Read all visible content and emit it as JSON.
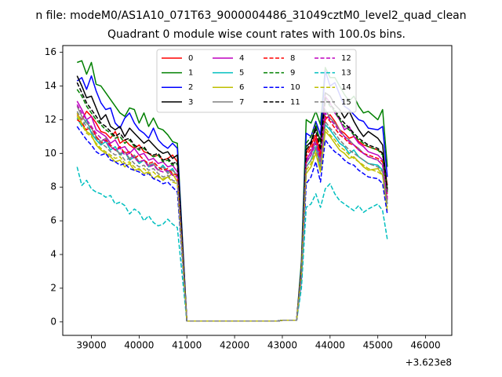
{
  "figure": {
    "suptitle": "n file: modeM0/AS1A10_071T63_9000004486_31049cztM0_level2_quad_clean"
  },
  "chart_data": {
    "type": "line",
    "title": "Quadrant 0 module wise count rates with 100.0s bins.",
    "xlabel": "",
    "ylabel": "",
    "x_offset_label": "+3.623e8",
    "xlim": [
      38400,
      46550
    ],
    "ylim": [
      -0.8,
      16.4
    ],
    "xticks": [
      39000,
      40000,
      41000,
      42000,
      43000,
      44000,
      45000,
      46000
    ],
    "yticks": [
      0,
      2,
      4,
      6,
      8,
      10,
      12,
      14,
      16
    ],
    "grid": false,
    "legend": {
      "placement": "top-center",
      "columns": 4
    },
    "x_segments": [
      {
        "start": 38700,
        "step": 100,
        "count": 22
      },
      {
        "start": 41000,
        "step": 100,
        "count": 22
      },
      {
        "start": 43300,
        "step": 100,
        "count": 16
      },
      {
        "start": 45000,
        "step": 100,
        "count": 13
      }
    ],
    "zero_segment": {
      "start": 41100,
      "end": 43000,
      "step": 100,
      "value": 0.05
    },
    "series": [
      {
        "name": "0",
        "color": "#ff0000",
        "dash": "solid",
        "s1": [
          12.3,
          12.0,
          12.5,
          12.2,
          11.8,
          11.3,
          11.2,
          10.9,
          11.3,
          10.6,
          10.8,
          10.5,
          10.3,
          10.5,
          10.1,
          10.0,
          9.8,
          9.9,
          9.6,
          9.7,
          9.9,
          9.5
        ],
        "seg2": [
          0.1,
          0.1,
          0.1,
          3.0,
          10.0,
          10.5,
          11.1,
          10.0
        ],
        "seg3": [
          12.0,
          12.3,
          11.9,
          11.4,
          11.2,
          10.9,
          11.0,
          10.7,
          10.5,
          10.4,
          10.2,
          10.0,
          8.1
        ]
      },
      {
        "name": "1",
        "color": "#008000",
        "dash": "solid",
        "s1": [
          15.4,
          15.5,
          14.7,
          15.4,
          14.1,
          14.0,
          13.6,
          13.2,
          12.8,
          12.4,
          12.2,
          12.7,
          12.6,
          11.8,
          12.4,
          11.6,
          12.1,
          11.5,
          11.4,
          11.1,
          10.7,
          10.6
        ],
        "seg2": [
          0.1,
          0.1,
          0.1,
          3.6,
          12.0,
          11.8,
          12.5,
          11.7
        ],
        "seg3": [
          15.1,
          14.5,
          14.5,
          14.0,
          13.5,
          13.1,
          13.4,
          12.8,
          12.4,
          12.5,
          12.0,
          12.6,
          9.2
        ]
      },
      {
        "name": "2",
        "color": "#0000ff",
        "dash": "solid",
        "s1": [
          14.3,
          14.5,
          13.8,
          14.6,
          13.7,
          13.0,
          12.6,
          12.7,
          11.8,
          11.5,
          12.1,
          12.4,
          11.8,
          11.4,
          11.2,
          10.9,
          11.5,
          10.8,
          10.5,
          10.3,
          10.6,
          10.3
        ],
        "seg2": [
          0.1,
          0.1,
          0.1,
          3.3,
          11.2,
          11.0,
          11.9,
          11.1
        ],
        "seg3": [
          14.9,
          14.0,
          14.2,
          13.5,
          12.8,
          12.6,
          12.3,
          12.0,
          11.9,
          11.5,
          11.4,
          11.6,
          8.6
        ]
      },
      {
        "name": "3",
        "color": "#000000",
        "dash": "solid",
        "s1": [
          14.6,
          14.0,
          13.3,
          13.4,
          12.7,
          12.0,
          12.3,
          11.6,
          11.4,
          11.6,
          11.0,
          11.5,
          11.2,
          10.9,
          10.6,
          10.8,
          10.5,
          10.2,
          10.0,
          10.1,
          9.7,
          9.9
        ],
        "seg2": [
          0.1,
          0.1,
          0.1,
          3.1,
          10.4,
          10.7,
          11.6,
          10.7
        ],
        "seg3": [
          13.6,
          13.4,
          12.9,
          12.6,
          12.1,
          12.5,
          11.9,
          11.4,
          11.0,
          11.3,
          10.9,
          10.5,
          7.8
        ]
      },
      {
        "name": "4",
        "color": "#bf00bf",
        "dash": "solid",
        "s1": [
          13.1,
          12.6,
          12.0,
          12.2,
          11.4,
          11.2,
          11.0,
          10.6,
          10.8,
          10.3,
          10.4,
          10.0,
          10.3,
          9.9,
          10.0,
          9.6,
          9.7,
          9.4,
          9.5,
          9.2,
          9.3,
          8.9
        ],
        "seg2": [
          0.1,
          0.1,
          0.1,
          2.9,
          9.6,
          10.1,
          10.9,
          9.7
        ],
        "seg3": [
          13.4,
          13.0,
          12.4,
          12.0,
          11.4,
          11.6,
          11.0,
          10.6,
          10.4,
          10.1,
          9.9,
          9.6,
          7.6
        ]
      },
      {
        "name": "5",
        "color": "#00bfbf",
        "dash": "solid",
        "s1": [
          12.1,
          11.6,
          12.0,
          11.2,
          10.8,
          10.5,
          10.7,
          10.2,
          10.4,
          9.9,
          10.1,
          9.6,
          9.8,
          9.4,
          9.6,
          9.2,
          9.4,
          9.0,
          9.3,
          8.9,
          9.1,
          8.6
        ],
        "seg2": [
          0.1,
          0.1,
          0.1,
          2.8,
          9.2,
          9.6,
          10.4,
          9.2
        ],
        "seg3": [
          11.7,
          11.4,
          11.0,
          10.6,
          10.4,
          10.0,
          10.2,
          9.8,
          9.6,
          9.4,
          9.3,
          9.0,
          7.0
        ]
      },
      {
        "name": "6",
        "color": "#bfbf00",
        "dash": "solid",
        "s1": [
          12.4,
          11.8,
          11.3,
          11.1,
          10.5,
          10.2,
          10.0,
          9.8,
          9.5,
          9.6,
          9.2,
          9.4,
          9.0,
          9.1,
          8.8,
          8.9,
          8.5,
          8.7,
          8.4,
          8.6,
          8.8,
          8.3
        ],
        "seg2": [
          0.1,
          0.1,
          0.1,
          2.7,
          8.8,
          9.2,
          10.0,
          8.9
        ],
        "seg3": [
          11.3,
          11.0,
          10.6,
          10.2,
          10.0,
          9.7,
          9.8,
          9.5,
          9.2,
          9.0,
          9.1,
          8.7,
          6.6
        ]
      },
      {
        "name": "7",
        "color": "#808080",
        "dash": "solid",
        "s1": [
          12.8,
          12.2,
          11.8,
          11.5,
          11.0,
          10.7,
          10.9,
          10.4,
          10.2,
          10.0,
          10.1,
          9.7,
          9.9,
          9.5,
          9.6,
          9.3,
          9.4,
          9.0,
          9.2,
          8.8,
          9.0,
          8.7
        ],
        "seg2": [
          0.1,
          0.1,
          0.1,
          2.9,
          9.4,
          9.9,
          10.7,
          9.5
        ],
        "seg3": [
          12.6,
          12.1,
          11.8,
          11.4,
          11.0,
          10.8,
          10.5,
          10.3,
          10.0,
          9.8,
          9.6,
          9.3,
          7.2
        ]
      },
      {
        "name": "8",
        "color": "#ff0000",
        "dash": "dashed",
        "s1": [
          12.0,
          11.8,
          11.4,
          11.6,
          11.0,
          10.6,
          10.8,
          10.5,
          10.2,
          10.4,
          10.0,
          10.1,
          9.7,
          9.9,
          9.6,
          9.4,
          9.5,
          9.2,
          9.0,
          9.1,
          8.8,
          8.7
        ],
        "seg2": [
          0.1,
          0.1,
          0.1,
          3.0,
          9.8,
          10.3,
          10.9,
          9.8
        ],
        "seg3": [
          12.2,
          11.9,
          11.5,
          11.1,
          10.9,
          10.6,
          10.5,
          10.2,
          10.0,
          9.9,
          9.7,
          9.5,
          7.4
        ]
      },
      {
        "name": "9",
        "color": "#008000",
        "dash": "dashed",
        "s1": [
          13.8,
          13.4,
          12.8,
          12.4,
          12.0,
          11.7,
          11.4,
          11.2,
          10.9,
          11.0,
          10.6,
          10.8,
          10.4,
          10.2,
          10.3,
          10.0,
          9.8,
          9.9,
          9.5,
          9.6,
          9.3,
          9.4
        ],
        "seg2": [
          0.1,
          0.1,
          0.1,
          3.2,
          10.6,
          11.0,
          11.8,
          10.4
        ],
        "seg3": [
          13.2,
          12.8,
          12.5,
          12.0,
          11.6,
          11.4,
          11.1,
          10.8,
          10.6,
          10.4,
          10.2,
          9.9,
          7.7
        ]
      },
      {
        "name": "10",
        "color": "#0000ff",
        "dash": "dashed",
        "s1": [
          11.6,
          11.2,
          10.8,
          10.5,
          10.1,
          9.9,
          10.0,
          9.6,
          9.5,
          9.3,
          9.4,
          9.1,
          9.0,
          8.9,
          8.7,
          8.8,
          8.5,
          8.4,
          8.2,
          8.3,
          8.0,
          7.7
        ],
        "seg2": [
          0.1,
          0.1,
          0.1,
          2.5,
          8.2,
          8.6,
          9.5,
          8.3
        ],
        "seg3": [
          10.8,
          10.4,
          10.1,
          9.9,
          9.6,
          9.4,
          9.3,
          9.0,
          8.8,
          8.6,
          8.5,
          8.2,
          6.4
        ]
      },
      {
        "name": "11",
        "color": "#000000",
        "dash": "dashed",
        "s1": [
          14.2,
          13.6,
          13.0,
          12.6,
          12.2,
          11.8,
          11.6,
          11.3,
          11.0,
          11.2,
          10.8,
          10.9,
          10.5,
          10.3,
          10.4,
          10.0,
          9.9,
          10.0,
          9.6,
          9.7,
          9.4,
          9.5
        ],
        "seg2": [
          0.1,
          0.1,
          0.1,
          3.1,
          10.2,
          10.6,
          11.4,
          10.2
        ],
        "seg3": [
          13.3,
          12.9,
          12.6,
          12.1,
          11.8,
          11.5,
          11.2,
          10.9,
          10.7,
          10.5,
          10.3,
          10.0,
          7.9
        ]
      },
      {
        "name": "12",
        "color": "#bf00bf",
        "dash": "dashed",
        "s1": [
          12.9,
          12.4,
          12.0,
          11.6,
          11.2,
          10.9,
          10.7,
          10.4,
          10.2,
          10.3,
          9.9,
          10.0,
          9.7,
          9.5,
          9.6,
          9.2,
          9.3,
          9.0,
          8.9,
          9.0,
          8.7,
          8.6
        ],
        "seg2": [
          0.1,
          0.1,
          0.1,
          2.9,
          9.5,
          9.9,
          10.6,
          9.5
        ],
        "seg3": [
          12.4,
          12.0,
          11.7,
          11.3,
          11.0,
          10.7,
          10.5,
          10.2,
          10.0,
          9.8,
          9.6,
          9.3,
          7.3
        ]
      },
      {
        "name": "13",
        "color": "#00bfbf",
        "dash": "dashed",
        "s1": [
          9.2,
          8.1,
          8.4,
          7.9,
          7.7,
          7.6,
          7.4,
          7.5,
          7.0,
          7.1,
          6.9,
          6.4,
          6.7,
          6.5,
          6.0,
          6.3,
          5.9,
          5.7,
          5.8,
          6.1,
          5.8,
          5.6
        ],
        "seg2": [
          0.1,
          0.1,
          0.1,
          2.0,
          6.8,
          7.0,
          7.6,
          6.8
        ],
        "seg3": [
          7.9,
          8.2,
          7.6,
          7.2,
          7.0,
          6.8,
          6.6,
          6.9,
          6.5,
          6.7,
          7.0,
          6.6,
          4.9
        ]
      },
      {
        "name": "14",
        "color": "#bfbf00",
        "dash": "dashed",
        "s1": [
          12.2,
          11.7,
          11.2,
          11.0,
          10.6,
          10.3,
          10.1,
          9.9,
          9.7,
          9.8,
          9.4,
          9.5,
          9.2,
          9.0,
          9.1,
          8.8,
          8.9,
          8.6,
          8.5,
          8.6,
          8.3,
          8.2
        ],
        "seg2": [
          0.1,
          0.1,
          0.1,
          2.8,
          9.0,
          9.4,
          10.2,
          9.0
        ],
        "seg3": [
          11.5,
          11.1,
          10.8,
          10.4,
          10.2,
          9.9,
          9.7,
          9.5,
          9.3,
          9.1,
          8.9,
          8.7,
          6.8
        ]
      },
      {
        "name": "15",
        "color": "#808080",
        "dash": "dashed",
        "s1": [
          12.5,
          12.0,
          11.6,
          11.3,
          10.9,
          10.6,
          10.4,
          10.1,
          9.9,
          10.0,
          9.6,
          9.7,
          9.4,
          9.2,
          9.3,
          9.0,
          9.1,
          8.8,
          8.6,
          8.7,
          8.4,
          8.3
        ],
        "seg2": [
          0.1,
          0.1,
          0.1,
          2.8,
          9.2,
          9.6,
          10.3,
          9.2
        ],
        "seg3": [
          11.9,
          11.5,
          11.2,
          10.8,
          10.5,
          10.2,
          10.0,
          9.8,
          9.6,
          9.4,
          9.2,
          8.9,
          7.0
        ]
      }
    ]
  }
}
